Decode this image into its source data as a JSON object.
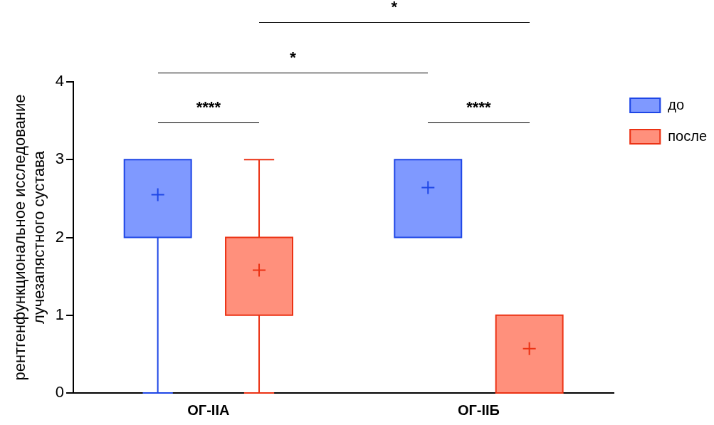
{
  "chart_data": {
    "type": "box",
    "ylabel": "рентгенфункциональное исследование\nлучезапястного сустава",
    "categories": [
      "ОГ-IIA",
      "ОГ-IIБ"
    ],
    "series": [
      {
        "name": "до",
        "color": "#7f99ff",
        "boxes": [
          {
            "low": 0,
            "q1": 2,
            "median": 3,
            "q3": 3,
            "high": 3,
            "mean": 2.55
          },
          {
            "low": 2,
            "q1": 2,
            "median": 3,
            "q3": 3,
            "high": 3,
            "mean": 2.64
          }
        ]
      },
      {
        "name": "после",
        "color": "#ff907c",
        "boxes": [
          {
            "low": 0,
            "q1": 1,
            "median": 2,
            "q3": 2,
            "high": 3,
            "mean": 1.58
          },
          {
            "low": 0,
            "q1": 0,
            "median": 1,
            "q3": 1,
            "high": 1,
            "mean": 0.57
          }
        ]
      }
    ],
    "ylim": [
      0,
      4
    ],
    "yticks": [
      0,
      1,
      2,
      3,
      4
    ],
    "grid": false,
    "legend": "right",
    "marker": "cross",
    "annotations": [
      "*",
      "*",
      "****",
      "****"
    ]
  }
}
